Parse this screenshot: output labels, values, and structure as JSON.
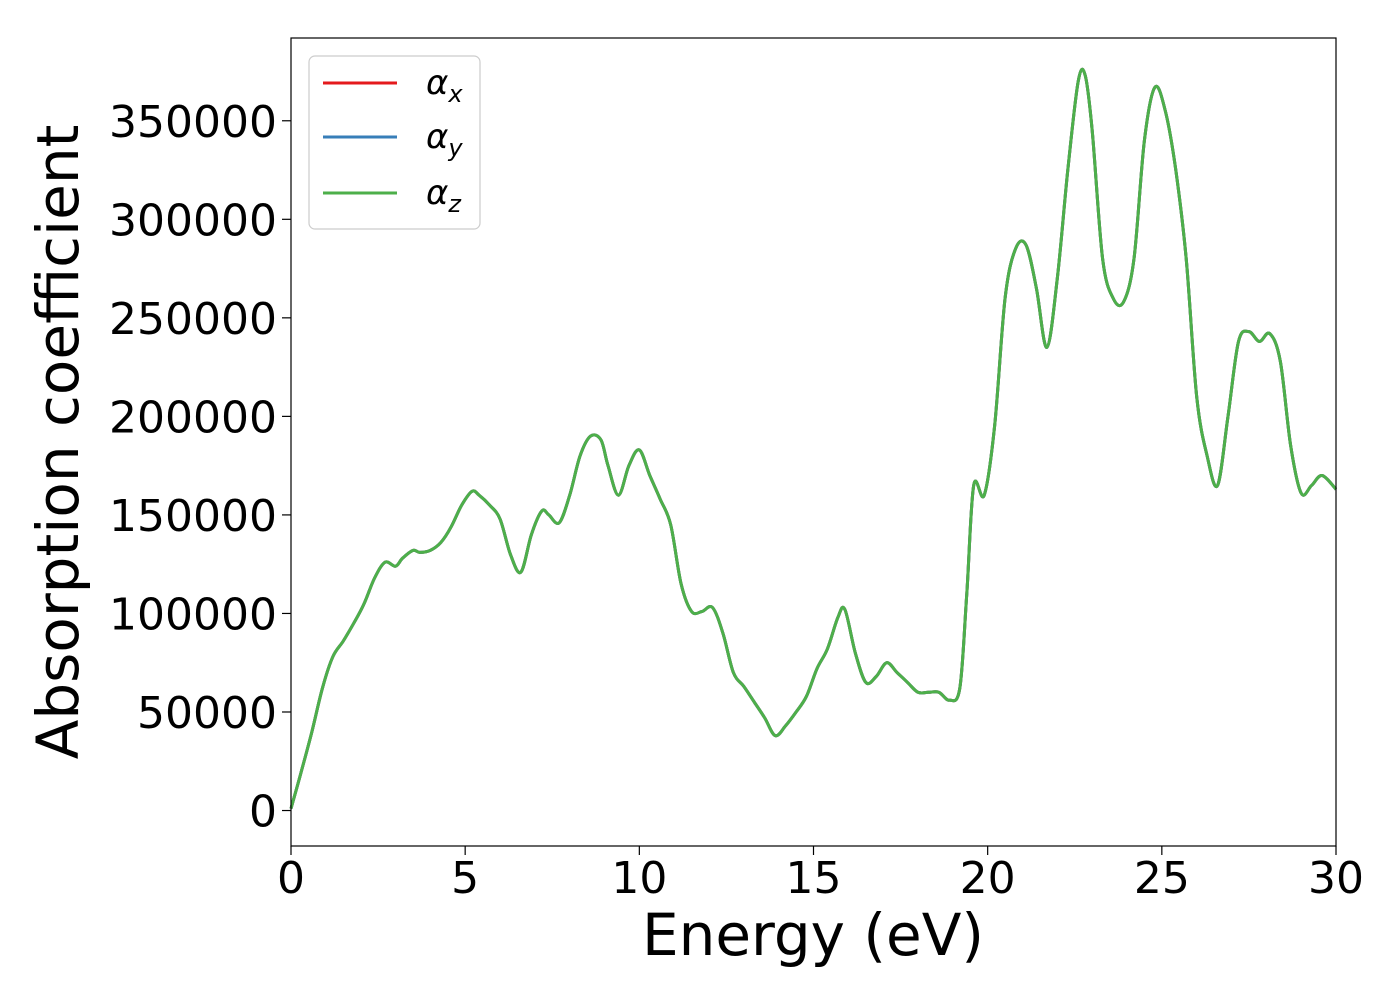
{
  "chart_data": {
    "type": "line",
    "title": "",
    "xlabel": "Energy (eV)",
    "ylabel": "Absorption coefficient",
    "xlim": [
      0,
      30
    ],
    "ylim": [
      -18000,
      392000
    ],
    "x_ticks": [
      0,
      5,
      10,
      15,
      20,
      25,
      30
    ],
    "x_tick_labels": [
      "0",
      "5",
      "10",
      "15",
      "20",
      "25",
      "30"
    ],
    "y_ticks": [
      0,
      50000,
      100000,
      150000,
      200000,
      250000,
      300000,
      350000
    ],
    "y_tick_labels": [
      "0",
      "50000",
      "100000",
      "150000",
      "200000",
      "250000",
      "300000",
      "350000"
    ],
    "grid": false,
    "legend_position": "top-left",
    "x": [
      0,
      0.3,
      0.6,
      0.9,
      1.2,
      1.5,
      1.8,
      2.1,
      2.4,
      2.7,
      3.0,
      3.2,
      3.5,
      3.7,
      4.0,
      4.3,
      4.6,
      4.9,
      5.2,
      5.4,
      5.7,
      6.0,
      6.3,
      6.6,
      6.9,
      7.2,
      7.4,
      7.7,
      8.0,
      8.3,
      8.6,
      8.9,
      9.1,
      9.4,
      9.7,
      10.0,
      10.3,
      10.6,
      10.9,
      11.2,
      11.5,
      11.8,
      12.1,
      12.4,
      12.7,
      13.0,
      13.3,
      13.6,
      13.9,
      14.2,
      14.5,
      14.8,
      15.1,
      15.4,
      15.7,
      15.9,
      16.2,
      16.5,
      16.8,
      17.1,
      17.4,
      17.7,
      18.0,
      18.3,
      18.6,
      18.9,
      19.2,
      19.4,
      19.6,
      19.9,
      20.2,
      20.5,
      20.8,
      21.1,
      21.4,
      21.7,
      22.0,
      22.3,
      22.6,
      22.8,
      23.0,
      23.3,
      23.6,
      23.9,
      24.2,
      24.5,
      24.8,
      25.1,
      25.4,
      25.7,
      26.0,
      26.3,
      26.6,
      26.9,
      27.2,
      27.5,
      27.8,
      28.1,
      28.4,
      28.7,
      29.0,
      29.3,
      29.6,
      30.0
    ],
    "series": [
      {
        "name": "α_x",
        "legend_main": "α",
        "legend_sub": "x",
        "color": "#e41a1c",
        "values": [
          1000,
          20000,
          40000,
          62000,
          78000,
          86000,
          95000,
          105000,
          118000,
          126000,
          124000,
          128000,
          132000,
          131000,
          132000,
          136000,
          144000,
          155000,
          162000,
          160000,
          155000,
          148000,
          130000,
          121000,
          140000,
          152000,
          150000,
          146000,
          160000,
          180000,
          190000,
          188000,
          175000,
          160000,
          175000,
          183000,
          170000,
          158000,
          145000,
          115000,
          101000,
          101000,
          103000,
          90000,
          70000,
          63000,
          55000,
          47000,
          38000,
          43000,
          50000,
          58000,
          72000,
          82000,
          98000,
          102000,
          80000,
          65000,
          68000,
          75000,
          70000,
          65000,
          60000,
          60000,
          60000,
          56000,
          62000,
          110000,
          165000,
          160000,
          195000,
          260000,
          285000,
          287000,
          265000,
          235000,
          270000,
          325000,
          370000,
          373000,
          345000,
          280000,
          260000,
          258000,
          280000,
          340000,
          367000,
          355000,
          325000,
          280000,
          210000,
          180000,
          165000,
          200000,
          238000,
          243000,
          238000,
          242000,
          228000,
          185000,
          161000,
          165000,
          170000,
          163000
        ]
      },
      {
        "name": "α_y",
        "legend_main": "α",
        "legend_sub": "y",
        "color": "#377eb8",
        "values": [
          1000,
          20000,
          40000,
          62000,
          78000,
          86000,
          95000,
          105000,
          118000,
          126000,
          124000,
          128000,
          132000,
          131000,
          132000,
          136000,
          144000,
          155000,
          162000,
          160000,
          155000,
          148000,
          130000,
          121000,
          140000,
          152000,
          150000,
          146000,
          160000,
          180000,
          190000,
          188000,
          175000,
          160000,
          175000,
          183000,
          170000,
          158000,
          145000,
          115000,
          101000,
          101000,
          103000,
          90000,
          70000,
          63000,
          55000,
          47000,
          38000,
          43000,
          50000,
          58000,
          72000,
          82000,
          98000,
          102000,
          80000,
          65000,
          68000,
          75000,
          70000,
          65000,
          60000,
          60000,
          60000,
          56000,
          62000,
          110000,
          165000,
          160000,
          195000,
          260000,
          285000,
          287000,
          265000,
          235000,
          270000,
          325000,
          370000,
          373000,
          345000,
          280000,
          260000,
          258000,
          280000,
          340000,
          367000,
          355000,
          325000,
          280000,
          210000,
          180000,
          165000,
          200000,
          238000,
          243000,
          238000,
          242000,
          228000,
          185000,
          161000,
          165000,
          170000,
          163000
        ]
      },
      {
        "name": "α_z",
        "legend_main": "α",
        "legend_sub": "z",
        "color": "#4daf4a",
        "values": [
          1000,
          20000,
          40000,
          62000,
          78000,
          86000,
          95000,
          105000,
          118000,
          126000,
          124000,
          128000,
          132000,
          131000,
          132000,
          136000,
          144000,
          155000,
          162000,
          160000,
          155000,
          148000,
          130000,
          121000,
          140000,
          152000,
          150000,
          146000,
          160000,
          180000,
          190000,
          188000,
          175000,
          160000,
          175000,
          183000,
          170000,
          158000,
          145000,
          115000,
          101000,
          101000,
          103000,
          90000,
          70000,
          63000,
          55000,
          47000,
          38000,
          43000,
          50000,
          58000,
          72000,
          82000,
          98000,
          102000,
          80000,
          65000,
          68000,
          75000,
          70000,
          65000,
          60000,
          60000,
          60000,
          56000,
          62000,
          110000,
          165000,
          160000,
          195000,
          260000,
          285000,
          287000,
          265000,
          235000,
          270000,
          325000,
          370000,
          373000,
          345000,
          280000,
          260000,
          258000,
          280000,
          340000,
          367000,
          355000,
          325000,
          280000,
          210000,
          180000,
          165000,
          200000,
          238000,
          243000,
          238000,
          242000,
          228000,
          185000,
          161000,
          165000,
          170000,
          163000
        ]
      }
    ]
  }
}
